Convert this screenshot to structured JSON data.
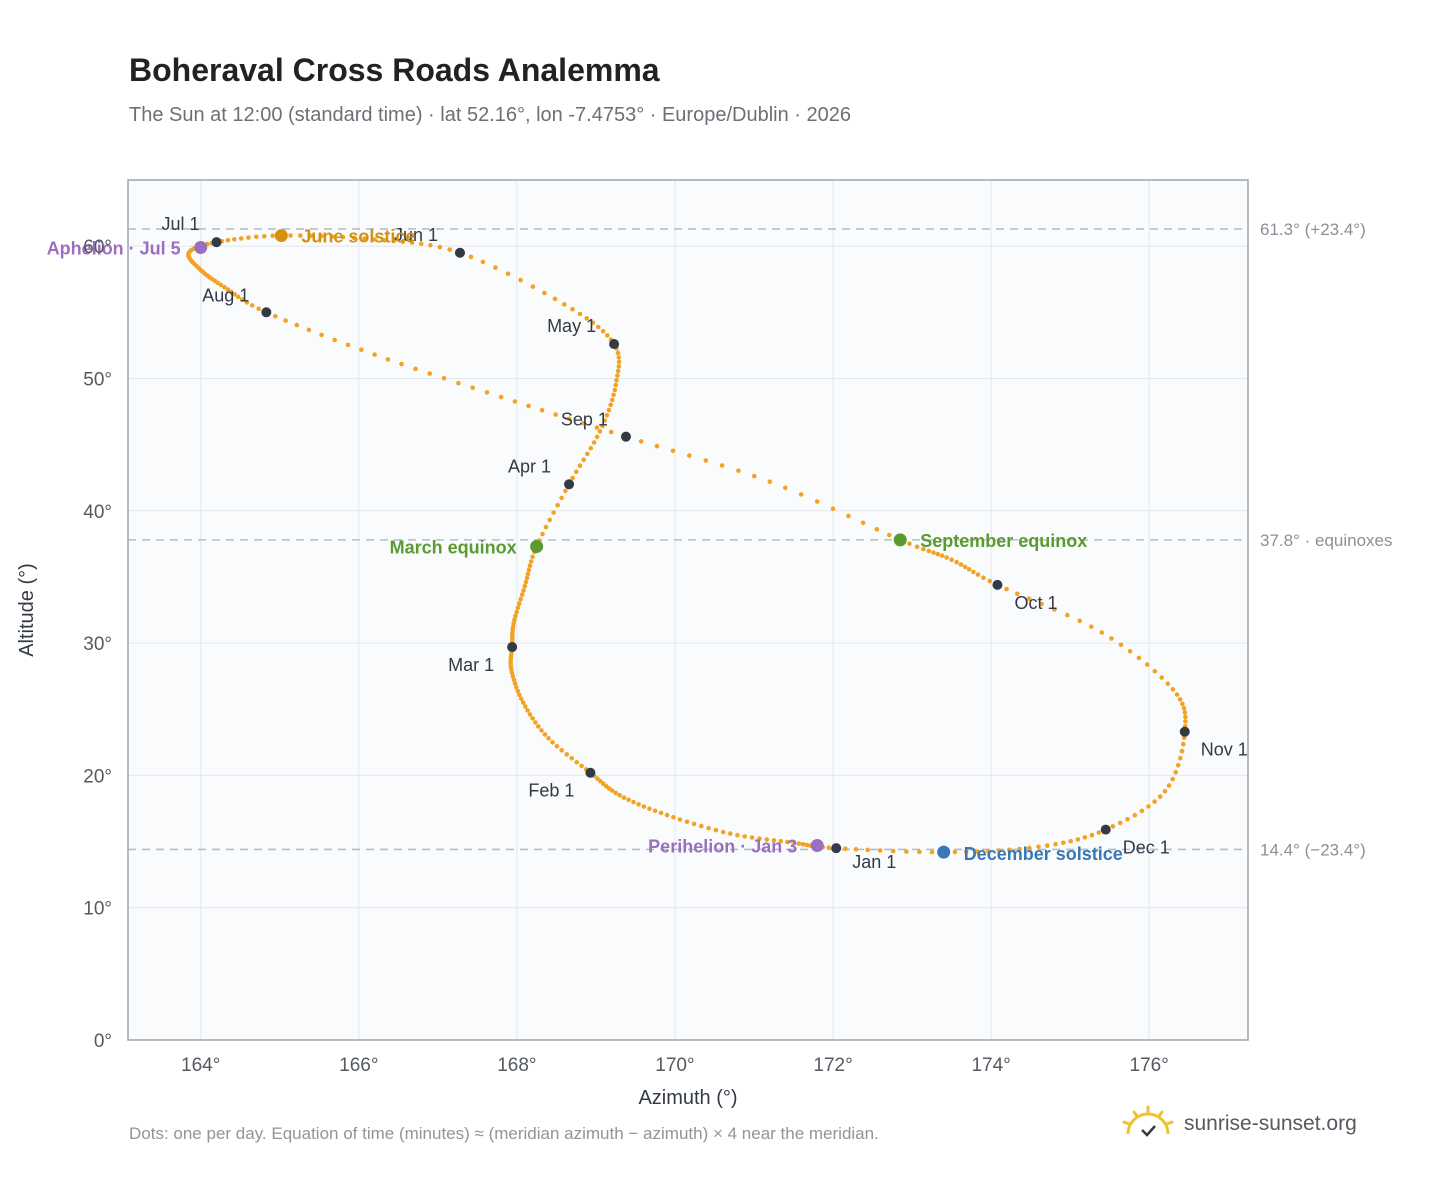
{
  "header": {
    "title": "Boheraval Cross Roads Analemma",
    "subtitle": "The Sun at 12:00 (standard time) · lat 52.16°, lon -7.4753° · Europe/Dublin · 2026"
  },
  "footer": {
    "note": "Dots: one per day. Equation of time (minutes) ≈ (meridian azimuth − azimuth) × 4 near the meridian.",
    "brand": "sunrise-sunset.org"
  },
  "colors": {
    "curve": "#f2a324",
    "month_dot": "#333a45",
    "june_solstice": "#d4910f",
    "december_solstice": "#3a78b5",
    "equinox": "#5a9a2e",
    "apsis": "#9b6fbf",
    "reference_line": "#b5bec8",
    "plot_bg": "#f9fbfd",
    "grid": "#e3e8ee",
    "frame": "#9aa5b1"
  },
  "chart_data": {
    "type": "scatter",
    "xlabel": "Azimuth (°)",
    "ylabel": "Altitude (°)",
    "xlim": [
      163.08,
      177.25
    ],
    "ylim": [
      0,
      65
    ],
    "x_ticks": [
      164,
      166,
      168,
      170,
      172,
      174,
      176
    ],
    "x_tick_labels": [
      "164°",
      "166°",
      "168°",
      "170°",
      "172°",
      "174°",
      "176°"
    ],
    "y_ticks": [
      0,
      10,
      20,
      30,
      40,
      50,
      60
    ],
    "y_tick_labels": [
      "0°",
      "10°",
      "20°",
      "30°",
      "40°",
      "50°",
      "60°"
    ],
    "grid": true,
    "reference_lines": [
      {
        "y": 61.3,
        "label": "61.3° (+23.4°)"
      },
      {
        "y": 37.8,
        "label": "37.8° · equinoxes"
      },
      {
        "y": 14.4,
        "label": "14.4° (−23.4°)"
      }
    ],
    "series": [
      {
        "points": [
          [
            172.04,
            14.5
          ],
          [
            171.5,
            14.9
          ],
          [
            170.7,
            15.6
          ],
          [
            169.9,
            17.0
          ],
          [
            169.3,
            18.5
          ],
          [
            168.93,
            20.2
          ],
          [
            168.4,
            22.8
          ],
          [
            168.08,
            25.5
          ],
          [
            167.93,
            28.0
          ],
          [
            167.94,
            29.7
          ],
          [
            167.96,
            31.5
          ],
          [
            168.1,
            34.3
          ],
          [
            168.25,
            37.3
          ],
          [
            168.66,
            42.0
          ],
          [
            169.05,
            46.0
          ],
          [
            169.25,
            49.5
          ],
          [
            169.23,
            52.6
          ],
          [
            168.6,
            55.6
          ],
          [
            167.28,
            59.5
          ],
          [
            166.2,
            60.5
          ],
          [
            165.02,
            60.8
          ],
          [
            164.2,
            60.3
          ],
          [
            163.85,
            59.5
          ],
          [
            164.0,
            58.2
          ],
          [
            164.3,
            56.9
          ],
          [
            164.83,
            55.0
          ],
          [
            166.2,
            51.8
          ],
          [
            167.8,
            48.6
          ],
          [
            169.38,
            45.6
          ],
          [
            171.2,
            42.2
          ],
          [
            172.85,
            37.8
          ],
          [
            173.5,
            36.3
          ],
          [
            174.08,
            34.4
          ],
          [
            175.4,
            30.8
          ],
          [
            176.3,
            26.5
          ],
          [
            176.45,
            23.3
          ],
          [
            176.2,
            18.8
          ],
          [
            175.45,
            15.9
          ],
          [
            174.6,
            14.6
          ],
          [
            173.4,
            14.2
          ],
          [
            172.04,
            14.5
          ]
        ]
      }
    ],
    "month_markers": [
      {
        "label": "Jan 1",
        "x": 172.04,
        "y": 14.5
      },
      {
        "label": "Feb 1",
        "x": 168.93,
        "y": 20.2
      },
      {
        "label": "Mar 1",
        "x": 167.94,
        "y": 29.7
      },
      {
        "label": "Apr 1",
        "x": 168.66,
        "y": 42.0
      },
      {
        "label": "May 1",
        "x": 169.23,
        "y": 52.6
      },
      {
        "label": "Jun 1",
        "x": 167.28,
        "y": 59.5
      },
      {
        "label": "Jul 1",
        "x": 164.2,
        "y": 60.3
      },
      {
        "label": "Aug 1",
        "x": 164.83,
        "y": 55.0
      },
      {
        "label": "Sep 1",
        "x": 169.38,
        "y": 45.6
      },
      {
        "label": "Oct 1",
        "x": 174.08,
        "y": 34.4
      },
      {
        "label": "Nov 1",
        "x": 176.45,
        "y": 23.3
      },
      {
        "label": "Dec 1",
        "x": 175.45,
        "y": 15.9
      }
    ],
    "events": [
      {
        "label": "June solstice",
        "x": 165.02,
        "y": 60.8,
        "color": "#d4910f"
      },
      {
        "label": "December solstice",
        "x": 173.4,
        "y": 14.2,
        "color": "#3a78b5"
      },
      {
        "label": "March equinox",
        "x": 168.25,
        "y": 37.3,
        "color": "#5a9a2e"
      },
      {
        "label": "September equinox",
        "x": 172.85,
        "y": 37.8,
        "color": "#5a9a2e"
      },
      {
        "label": "Aphelion · Jul 5",
        "x": 164.0,
        "y": 59.9,
        "color": "#9b6fbf"
      },
      {
        "label": "Perihelion · Jan 3",
        "x": 171.8,
        "y": 14.7,
        "color": "#9b6fbf"
      }
    ]
  }
}
